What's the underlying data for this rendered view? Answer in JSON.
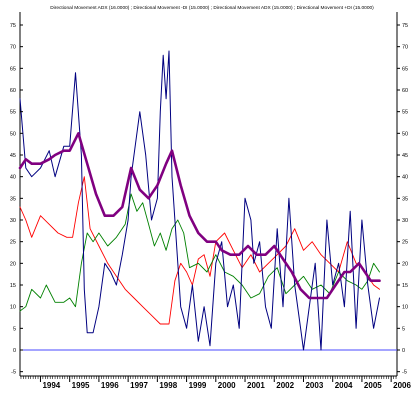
{
  "chart_data": {
    "type": "line",
    "title": "Directional Movement ADX (16.0000) ; Directional Movement -DI (15.0000) ; Directional Movement ADX (15.0000) ; Directional Movement +DI (15.0000)",
    "xlabel": "",
    "ylabel": "",
    "x_range": [
      1993.3,
      2006.2
    ],
    "ylim": [
      -6,
      78
    ],
    "y_ticks": [
      -5,
      0,
      5,
      10,
      15,
      20,
      25,
      30,
      35,
      40,
      45,
      50,
      55,
      60,
      65,
      70,
      75
    ],
    "x_ticks": [
      1994,
      1995,
      1996,
      1997,
      1998,
      1999,
      2000,
      2001,
      2002,
      2003,
      2004,
      2005,
      2006
    ],
    "x_tick_labels": [
      "1994",
      "1995",
      "1996",
      "1997",
      "1998",
      "1999",
      "2000",
      "2001",
      "2002",
      "2003",
      "2004",
      "2005",
      "2006"
    ],
    "zero_line": 0,
    "grid": false,
    "legend": "none",
    "colors": {
      "adx": "#800080",
      "dx": "#000080",
      "minus_di": "#ff0000",
      "plus_di": "#008000",
      "zero": "#4a4aff",
      "axis": "#000000"
    },
    "series": [
      {
        "key": "adx",
        "x": [
          1993.3,
          1993.5,
          1993.7,
          1994.0,
          1994.3,
          1994.5,
          1994.8,
          1995.0,
          1995.3,
          1995.6,
          1995.9,
          1996.2,
          1996.5,
          1996.8,
          1997.1,
          1997.4,
          1997.7,
          1998.0,
          1998.3,
          1998.5,
          1998.8,
          1999.1,
          1999.4,
          1999.7,
          2000.0,
          2000.2,
          2000.5,
          2000.8,
          2001.1,
          2001.4,
          2001.7,
          2002.0,
          2002.3,
          2002.6,
          2002.9,
          2003.2,
          2003.5,
          2003.8,
          2004.1,
          2004.4,
          2004.6,
          2004.9,
          2005.1,
          2005.3,
          2005.6
        ],
        "y": [
          42,
          44,
          43,
          43,
          44,
          45,
          46,
          46,
          50,
          43,
          36,
          31,
          31,
          33,
          42,
          37,
          35,
          38,
          43,
          46,
          38,
          31,
          27,
          25,
          25,
          23,
          22,
          22,
          24,
          22,
          22,
          24,
          21,
          18,
          14,
          12,
          12,
          12,
          15,
          18,
          18,
          20,
          18,
          16,
          16
        ]
      },
      {
        "key": "dx",
        "x": [
          1993.3,
          1993.5,
          1993.7,
          1994.0,
          1994.3,
          1994.5,
          1994.8,
          1995.0,
          1995.2,
          1995.4,
          1995.5,
          1995.6,
          1995.8,
          1996.0,
          1996.2,
          1996.4,
          1996.6,
          1996.8,
          1997.0,
          1997.1,
          1997.3,
          1997.4,
          1997.6,
          1997.8,
          1998.0,
          1998.1,
          1998.2,
          1998.3,
          1998.4,
          1998.5,
          1998.7,
          1998.8,
          1999.0,
          1999.2,
          1999.4,
          1999.6,
          1999.8,
          2000.0,
          2000.2,
          2000.4,
          2000.6,
          2000.8,
          2001.0,
          2001.2,
          2001.3,
          2001.5,
          2001.7,
          2001.9,
          2002.1,
          2002.3,
          2002.5,
          2002.7,
          2002.9,
          2003.0,
          2003.2,
          2003.4,
          2003.6,
          2003.8,
          2004.0,
          2004.2,
          2004.4,
          2004.6,
          2004.8,
          2005.0,
          2005.2,
          2005.4,
          2005.6
        ],
        "y": [
          58,
          42,
          40,
          42,
          46,
          40,
          47,
          47,
          64,
          45,
          14,
          4,
          4,
          10,
          20,
          18,
          15,
          22,
          30,
          40,
          50,
          55,
          45,
          30,
          35,
          55,
          68,
          58,
          69,
          40,
          20,
          10,
          5,
          15,
          2,
          10,
          1,
          20,
          25,
          10,
          15,
          5,
          35,
          30,
          20,
          25,
          10,
          5,
          28,
          10,
          35,
          15,
          5,
          0,
          10,
          20,
          0,
          30,
          15,
          20,
          10,
          32,
          5,
          30,
          15,
          5,
          12
        ]
      },
      {
        "key": "minus_di",
        "x": [
          1993.3,
          1993.5,
          1993.7,
          1994.0,
          1994.3,
          1994.6,
          1994.9,
          1995.1,
          1995.3,
          1995.5,
          1995.7,
          1996.0,
          1996.3,
          1996.6,
          1996.9,
          1997.2,
          1997.5,
          1997.8,
          1998.1,
          1998.4,
          1998.6,
          1998.8,
          1999.0,
          1999.2,
          1999.4,
          1999.6,
          1999.8,
          2000.0,
          2000.3,
          2000.6,
          2000.9,
          2001.2,
          2001.5,
          2001.8,
          2002.1,
          2002.4,
          2002.7,
          2003.0,
          2003.3,
          2003.6,
          2003.9,
          2004.2,
          2004.5,
          2004.8,
          2005.0,
          2005.2,
          2005.4,
          2005.6
        ],
        "y": [
          33,
          30,
          26,
          31,
          29,
          27,
          26,
          26,
          34,
          40,
          28,
          24,
          20,
          17,
          14,
          12,
          10,
          8,
          6,
          6,
          16,
          20,
          18,
          15,
          21,
          22,
          17,
          25,
          27,
          23,
          19,
          22,
          18,
          20,
          22,
          24,
          28,
          23,
          25,
          22,
          20,
          18,
          25,
          20,
          19,
          17,
          15,
          14
        ]
      },
      {
        "key": "plus_di",
        "x": [
          1993.3,
          1993.5,
          1993.7,
          1994.0,
          1994.2,
          1994.5,
          1994.8,
          1995.0,
          1995.2,
          1995.4,
          1995.6,
          1995.8,
          1996.0,
          1996.3,
          1996.6,
          1996.9,
          1997.1,
          1997.3,
          1997.5,
          1997.7,
          1997.9,
          1998.1,
          1998.3,
          1998.5,
          1998.7,
          1998.9,
          1999.1,
          1999.4,
          1999.7,
          2000.0,
          2000.3,
          2000.6,
          2000.9,
          2001.2,
          2001.5,
          2001.8,
          2002.1,
          2002.4,
          2002.7,
          2003.0,
          2003.3,
          2003.6,
          2003.9,
          2004.2,
          2004.5,
          2004.8,
          2005.0,
          2005.2,
          2005.4,
          2005.6
        ],
        "y": [
          9,
          10,
          14,
          12,
          15,
          11,
          11,
          12,
          10,
          20,
          27,
          25,
          27,
          24,
          26,
          29,
          36,
          32,
          34,
          29,
          24,
          27,
          23,
          28,
          30,
          27,
          19,
          20,
          18,
          22,
          18,
          17,
          15,
          12,
          13,
          17,
          19,
          13,
          15,
          17,
          14,
          15,
          13,
          18,
          16,
          15,
          14,
          16,
          20,
          18
        ]
      }
    ]
  }
}
